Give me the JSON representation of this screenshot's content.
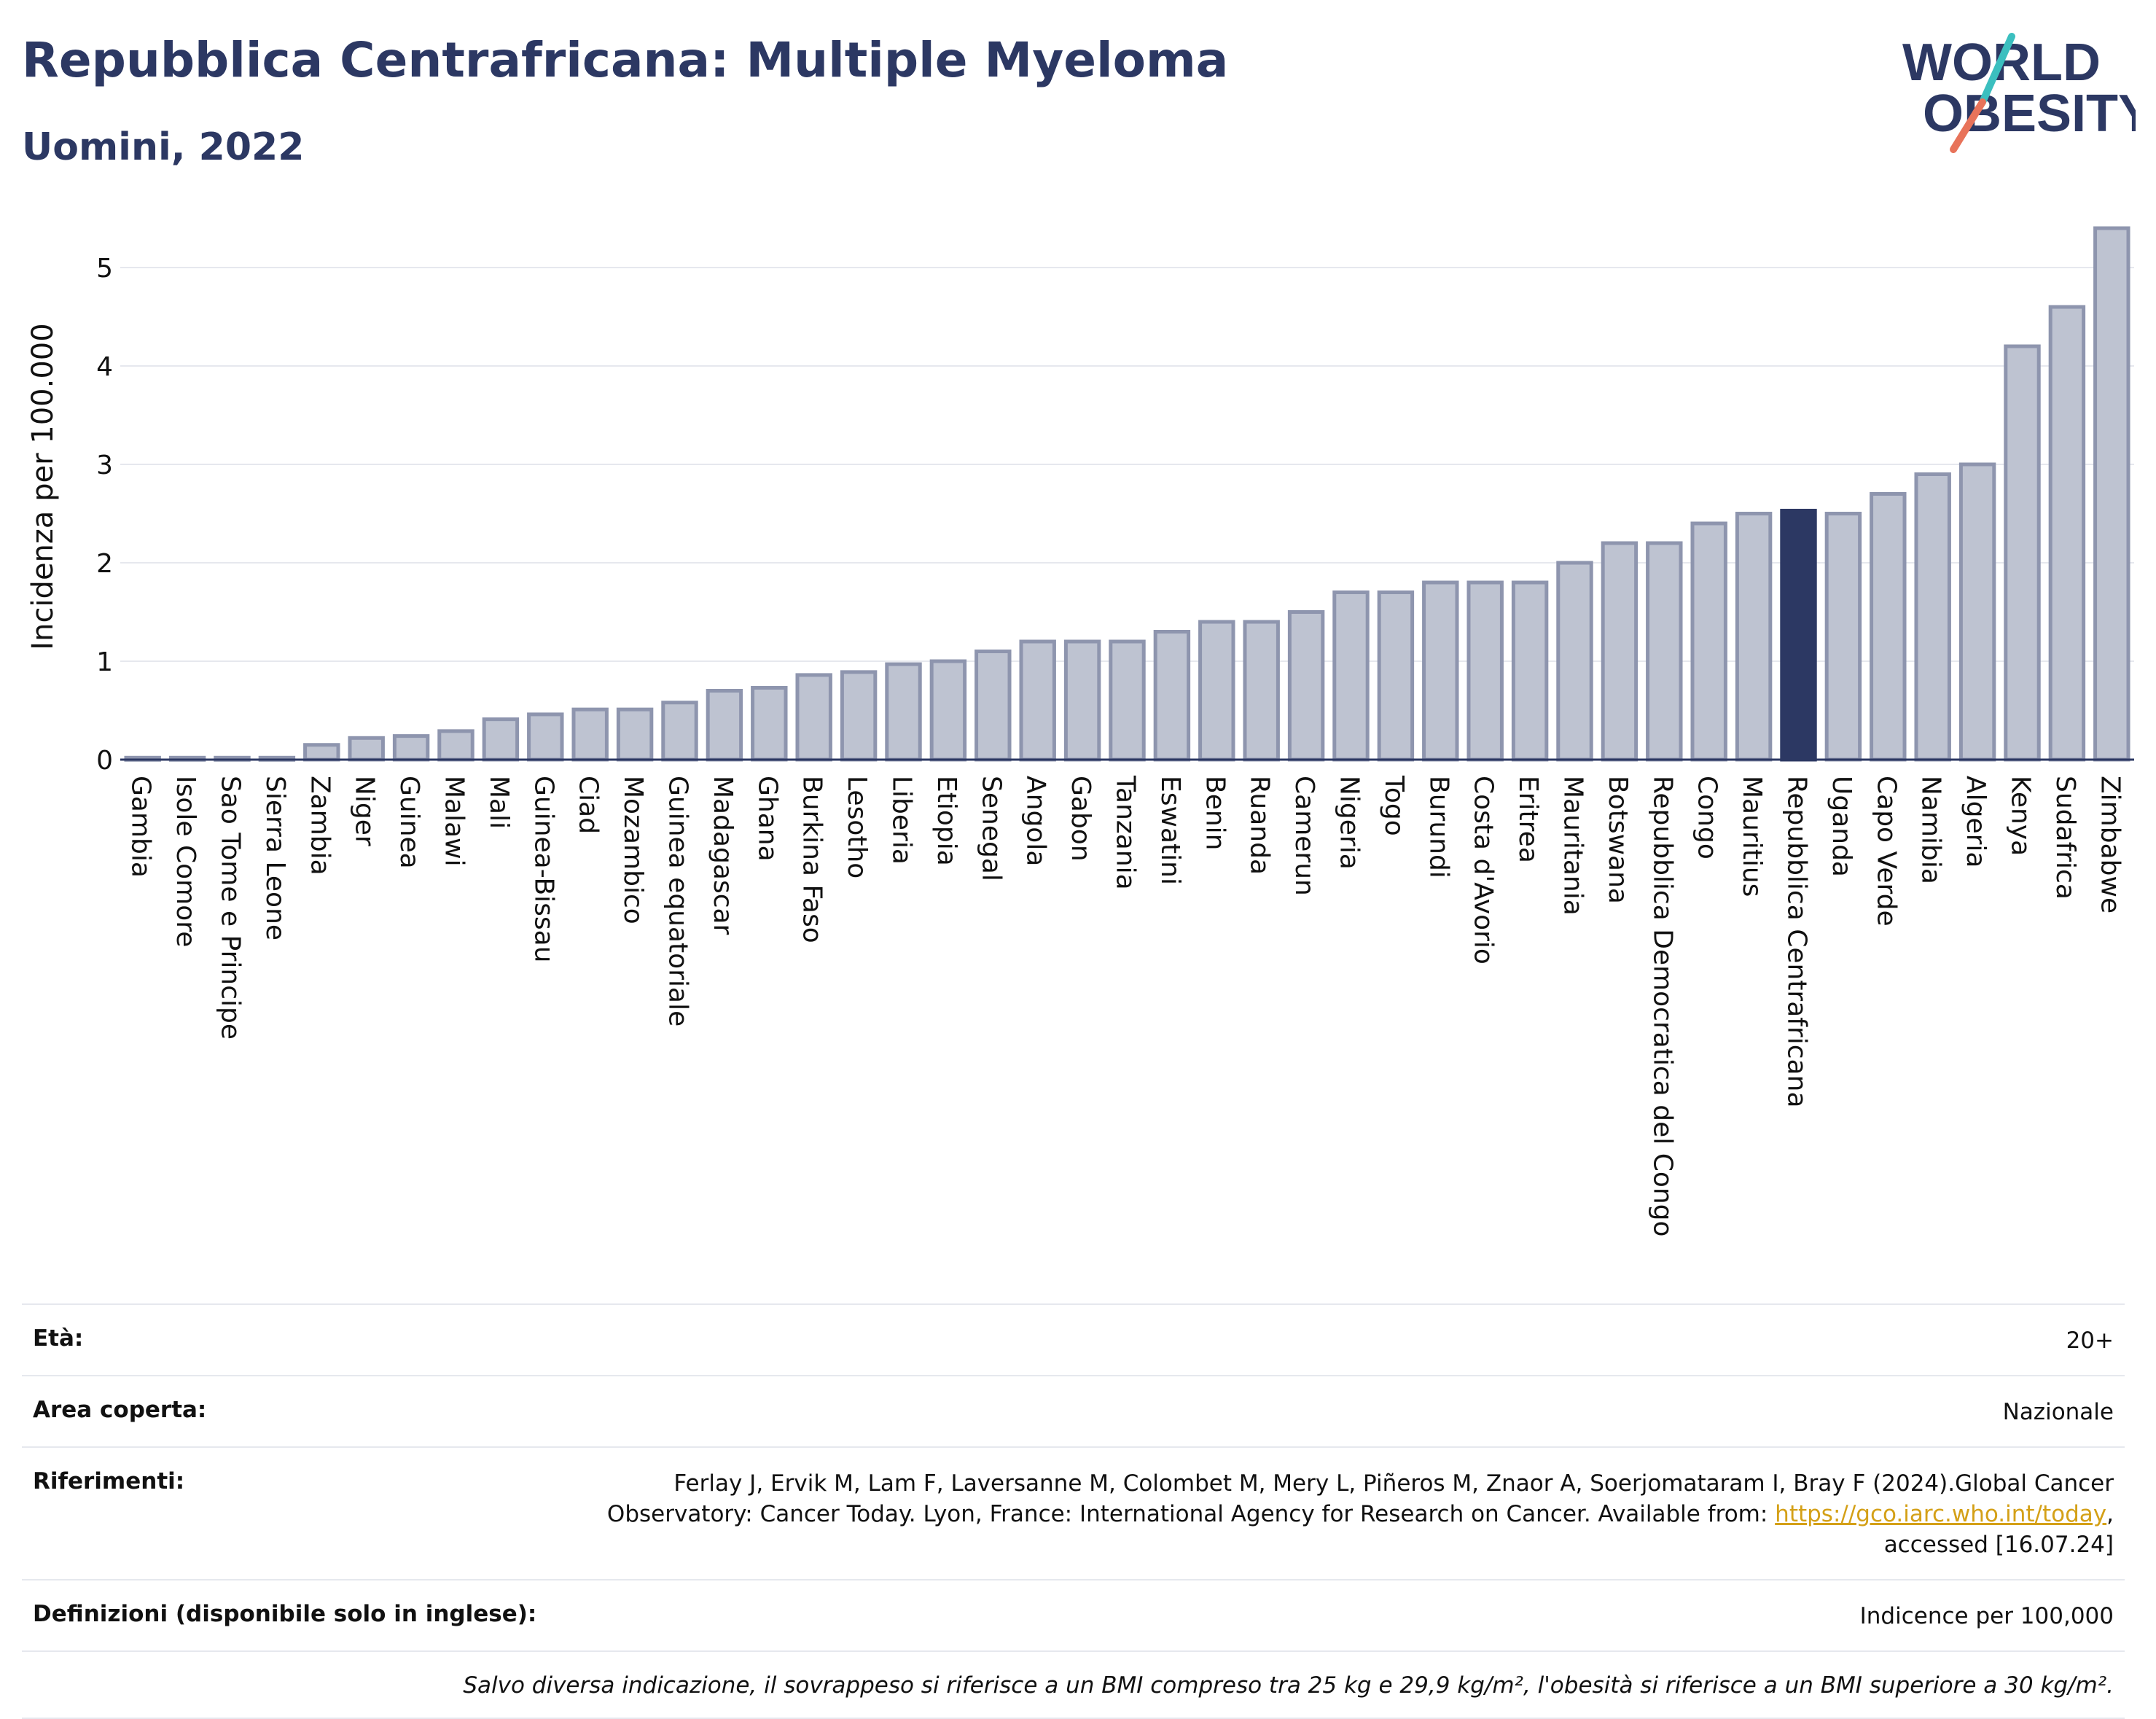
{
  "header": {
    "title": "Repubblica Centrafricana: Multiple Myeloma",
    "subtitle": "Uomini, 2022",
    "logo": {
      "line1": "WORLD",
      "line2": "OBESITY",
      "colors": {
        "text": "#2c3863",
        "slash_top": "#3bbfbf",
        "slash_bottom": "#e8735a"
      }
    }
  },
  "chart_data": {
    "type": "bar",
    "ylabel": "Incidenza per 100.000",
    "ylim": [
      0,
      5.5
    ],
    "yticks": [
      0,
      1,
      2,
      3,
      4,
      5
    ],
    "grid": true,
    "highlight": "Repubblica Centrafricana",
    "colors": {
      "bar": "#bec3d1",
      "bar_edge": "#8e95ae",
      "highlight": "#2c3863"
    },
    "categories": [
      "Gambia",
      "Isole Comore",
      "Sao Tome e Principe",
      "Sierra Leone",
      "Zambia",
      "Niger",
      "Guinea",
      "Malawi",
      "Mali",
      "Guinea-Bissau",
      "Ciad",
      "Mozambico",
      "Guinea equatoriale",
      "Madagascar",
      "Ghana",
      "Burkina Faso",
      "Lesotho",
      "Liberia",
      "Etiopia",
      "Senegal",
      "Angola",
      "Gabon",
      "Tanzania",
      "Eswatini",
      "Benin",
      "Ruanda",
      "Camerun",
      "Nigeria",
      "Togo",
      "Burundi",
      "Costa d'Avorio",
      "Eritrea",
      "Mauritania",
      "Botswana",
      "Repubblica Democratica del Congo",
      "Congo",
      "Mauritius",
      "Repubblica Centrafricana",
      "Uganda",
      "Capo Verde",
      "Namibia",
      "Algeria",
      "Kenya",
      "Sudafrica",
      "Zimbabwe"
    ],
    "values": [
      0.02,
      0.02,
      0.02,
      0.02,
      0.15,
      0.22,
      0.24,
      0.29,
      0.41,
      0.46,
      0.51,
      0.51,
      0.58,
      0.7,
      0.73,
      0.86,
      0.89,
      0.97,
      1.0,
      1.1,
      1.2,
      1.2,
      1.2,
      1.3,
      1.4,
      1.4,
      1.5,
      1.7,
      1.7,
      1.8,
      1.8,
      1.8,
      2.0,
      2.2,
      2.2,
      2.4,
      2.5,
      2.53,
      2.5,
      2.7,
      2.9,
      3.0,
      4.2,
      4.6,
      5.4
    ]
  },
  "info": {
    "age_label": "Età:",
    "age_value": "20+",
    "area_label": "Area coperta:",
    "area_value": "Nazionale",
    "refs_label": "Riferimenti:",
    "refs_line1": "Ferlay J, Ervik M, Lam F, Laversanne M, Colombet M, Mery L, Piñeros M, Znaor A, Soerjomataram I, Bray F (2024).Global Cancer",
    "refs_line2": "Observatory: Cancer Today. Lyon, France: International Agency for Research on Cancer. Available from:",
    "refs_link": "https://gco.iarc.who.int/today",
    "refs_line3": "accessed [16.07.24]",
    "defs_label": "Definizioni (disponibile solo in inglese):",
    "defs_value": "Indicence per 100,000",
    "note": "Salvo diversa indicazione, il sovrappeso si riferisce a un BMI compreso tra 25 kg e 29,9 kg/m², l'obesità si riferisce a un BMI superiore a 30 kg/m²."
  }
}
